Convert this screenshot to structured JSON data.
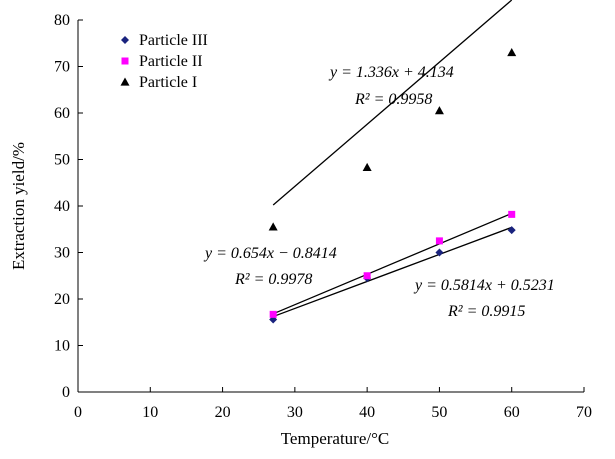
{
  "chart_data": {
    "type": "scatter",
    "xlabel": "Temperature/°C",
    "ylabel": "Extraction yield/%",
    "xlim": [
      0,
      70
    ],
    "ylim": [
      0,
      80
    ],
    "xticks": [
      0,
      10,
      20,
      30,
      40,
      50,
      60,
      70
    ],
    "yticks": [
      0,
      10,
      20,
      30,
      40,
      50,
      60,
      70,
      80
    ],
    "grid": false,
    "legend_position": "top-left",
    "series": [
      {
        "name": "Particle III",
        "marker": "diamond",
        "color": "#1a237e",
        "x": [
          27,
          40,
          50,
          60
        ],
        "y": [
          15.6,
          24.5,
          30.0,
          34.8
        ],
        "fit": {
          "slope": 0.5814,
          "intercept": 0.5231,
          "x_range": [
            27,
            60
          ]
        }
      },
      {
        "name": "Particle II",
        "marker": "square",
        "color": "#ff00ff",
        "x": [
          27,
          40,
          50,
          60
        ],
        "y": [
          16.7,
          25.0,
          32.5,
          38.2
        ],
        "fit": {
          "slope": 0.654,
          "intercept": -0.8414,
          "x_range": [
            27,
            60
          ]
        }
      },
      {
        "name": "Particle I",
        "marker": "triangle",
        "color": "#000000",
        "x": [
          27,
          40,
          50,
          60
        ],
        "y": [
          35.5,
          48.3,
          60.5,
          73.0
        ],
        "fit": {
          "slope": 1.336,
          "intercept": 4.134,
          "x_range": [
            27,
            60
          ]
        }
      }
    ],
    "annotations": [
      {
        "equation": "y = 1.336x + 4.134",
        "r2": "R² = 0.9958"
      },
      {
        "equation": "y = 0.654x − 0.8414",
        "r2": "R² = 0.9978"
      },
      {
        "equation": "y = 0.5814x + 0.5231",
        "r2": "R² = 0.9915"
      }
    ]
  }
}
